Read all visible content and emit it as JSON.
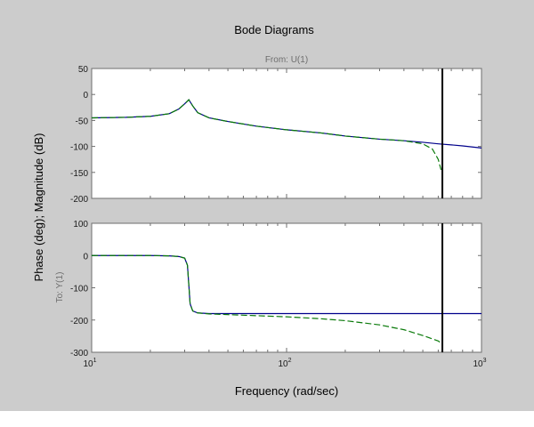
{
  "figure": {
    "title": "Bode Diagrams",
    "from_label": "From: U(1)",
    "to_label": "To: Y(1)",
    "ylabel": "Phase (deg); Magnitude (dB)",
    "xlabel": "Frequency (rad/sec)",
    "background": "#cccccc"
  },
  "chart_data": [
    {
      "type": "line",
      "panel": "magnitude",
      "xscale": "log",
      "xlim": [
        10,
        1000
      ],
      "ylim": [
        -200,
        50
      ],
      "yticks": [
        50,
        0,
        -50,
        -100,
        -150,
        -200
      ],
      "xtick_labels": [
        "10^1",
        "10^2",
        "10^3"
      ],
      "grid": false,
      "vertical_marker_x": 630,
      "series": [
        {
          "color": "#00008b",
          "style": "solid",
          "x": [
            10,
            15,
            20,
            25,
            28,
            30,
            31.5,
            33,
            35,
            40,
            50,
            70,
            100,
            150,
            200,
            300,
            400,
            500,
            600,
            700,
            800,
            1000
          ],
          "y": [
            -45,
            -44,
            -42,
            -37,
            -28,
            -18,
            -10,
            -22,
            -35,
            -45,
            -52,
            -61,
            -68,
            -74,
            -80,
            -86,
            -89,
            -92,
            -95,
            -97,
            -99,
            -103
          ]
        },
        {
          "color": "#0a7a0a",
          "style": "dashed",
          "x": [
            10,
            15,
            20,
            25,
            28,
            30,
            31.5,
            33,
            35,
            40,
            50,
            70,
            100,
            150,
            200,
            300,
            400,
            500,
            560,
            600,
            620
          ],
          "y": [
            -45,
            -44,
            -42,
            -37,
            -28,
            -18,
            -10,
            -22,
            -35,
            -45,
            -52,
            -61,
            -68,
            -74,
            -80,
            -86,
            -89,
            -95,
            -105,
            -125,
            -145
          ]
        }
      ]
    },
    {
      "type": "line",
      "panel": "phase",
      "xscale": "log",
      "xlim": [
        10,
        1000
      ],
      "ylim": [
        -300,
        100
      ],
      "yticks": [
        100,
        0,
        -100,
        -200,
        -300
      ],
      "xtick_labels": [
        "10^1",
        "10^2",
        "10^3"
      ],
      "grid": false,
      "vertical_marker_x": 630,
      "series": [
        {
          "color": "#00008b",
          "style": "solid",
          "x": [
            10,
            20,
            25,
            28,
            30,
            31,
            31.5,
            32,
            33,
            35,
            40,
            60,
            100,
            300,
            600,
            1000
          ],
          "y": [
            0,
            0,
            -1,
            -3,
            -8,
            -30,
            -90,
            -150,
            -172,
            -178,
            -180,
            -180,
            -180,
            -180,
            -180,
            -180
          ]
        },
        {
          "color": "#0a7a0a",
          "style": "dashed",
          "x": [
            10,
            20,
            25,
            28,
            30,
            31,
            31.5,
            32,
            33,
            35,
            40,
            60,
            100,
            150,
            200,
            300,
            400,
            500,
            600,
            630
          ],
          "y": [
            0,
            0,
            -1,
            -3,
            -8,
            -30,
            -90,
            -150,
            -172,
            -178,
            -181,
            -185,
            -190,
            -196,
            -202,
            -215,
            -230,
            -248,
            -265,
            -275
          ]
        }
      ]
    }
  ]
}
